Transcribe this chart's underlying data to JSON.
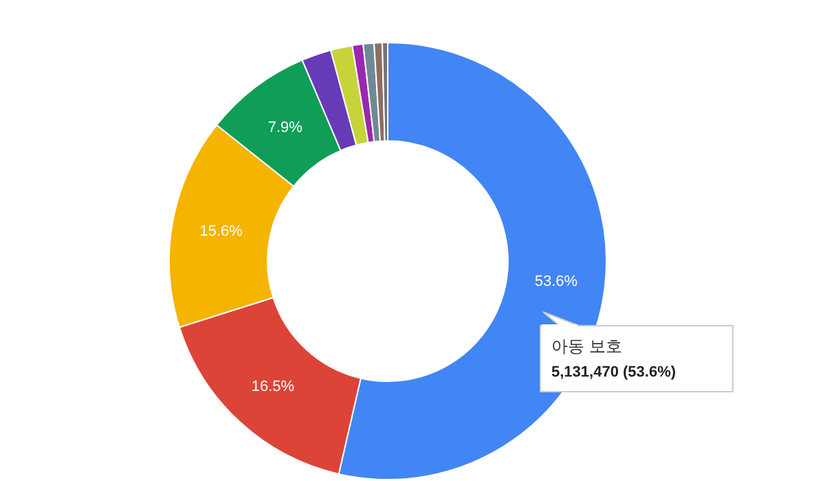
{
  "chart_data": {
    "type": "donut",
    "categories": [
      "아동 보호",
      null,
      null,
      null,
      null,
      null,
      null,
      null,
      null,
      null
    ],
    "values": [
      53.6,
      16.5,
      15.6,
      7.9,
      2.2,
      1.6,
      0.8,
      0.8,
      0.6,
      0.4
    ],
    "colors": [
      "#4285f4",
      "#db4437",
      "#f4b400",
      "#0f9d58",
      "#673ab7",
      "#c6d43a",
      "#9c27b0",
      "#6f8a96",
      "#8d6e63",
      "#757575"
    ],
    "value_labels": [
      "53.6%",
      "16.5%",
      "15.6%",
      "7.9%",
      null,
      null,
      null,
      null,
      null,
      null
    ],
    "annotations": [
      "5,131,470 (53.6%)"
    ]
  }
}
